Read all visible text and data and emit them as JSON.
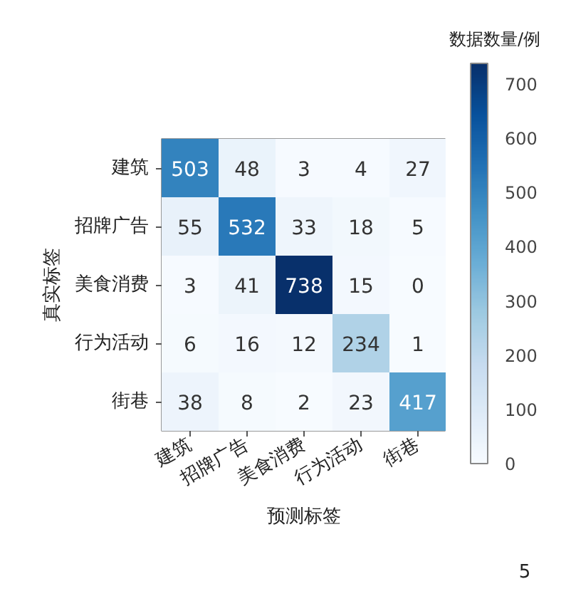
{
  "chart_data": {
    "type": "heatmap",
    "xlabel": "预测标签",
    "ylabel": "真实标签",
    "clabel": "数据数量/例",
    "categories": [
      "建筑",
      "招牌广告",
      "美食消费",
      "行为活动",
      "街巷"
    ],
    "y_categories": [
      "建筑",
      "招牌广告",
      "美食消费",
      "行为活动",
      "街巷"
    ],
    "cells": [
      [
        503,
        48,
        3,
        4,
        27
      ],
      [
        55,
        532,
        33,
        18,
        5
      ],
      [
        3,
        41,
        738,
        15,
        0
      ],
      [
        6,
        16,
        12,
        234,
        1
      ],
      [
        38,
        8,
        2,
        23,
        417
      ]
    ],
    "clim": [
      0,
      738
    ],
    "cticks": [
      0,
      100,
      200,
      300,
      400,
      500,
      600,
      700
    ],
    "data_labels": true,
    "annotations": [
      "5"
    ]
  }
}
